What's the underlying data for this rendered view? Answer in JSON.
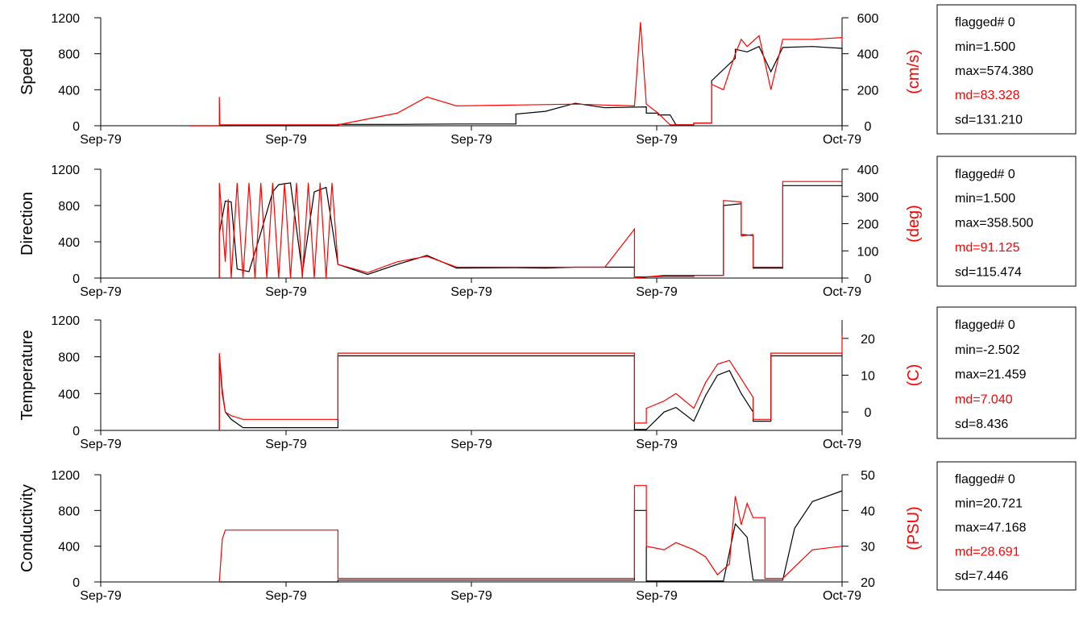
{
  "chart_data": [
    {
      "type": "line",
      "ylabel": "Speed",
      "ylabel_right": "(cm/s)",
      "x_tick_labels": [
        "Sep-79",
        "Sep-79",
        "Sep-79",
        "Sep-79",
        "Oct-79"
      ],
      "ylim": [
        0,
        1200
      ],
      "y_ticks": [
        "0",
        "400",
        "800",
        "1200"
      ],
      "ylim_right": [
        0,
        600
      ],
      "y_ticks_right": [
        "0",
        "200",
        "400",
        "600"
      ],
      "series": [
        {
          "color": "#000000",
          "axis": "left",
          "x": [
            0.15,
            0.2,
            0.4,
            0.4,
            0.5,
            0.6,
            0.7,
            0.7,
            0.75,
            0.8,
            0.85,
            0.85,
            0.92,
            0.92,
            0.94,
            0.94,
            0.96,
            0.97,
            0.98,
            0.98,
            1.0,
            1.0,
            1.03,
            1.03,
            1.07,
            1.07,
            1.09,
            1.11,
            1.13,
            1.15,
            1.2,
            1.25,
            1.25
          ],
          "y": [
            0,
            0,
            0,
            15,
            15,
            20,
            20,
            130,
            160,
            250,
            200,
            200,
            210,
            140,
            140,
            120,
            120,
            10,
            10,
            10,
            10,
            30,
            30,
            500,
            750,
            850,
            820,
            880,
            600,
            870,
            880,
            860,
            0
          ]
        },
        {
          "color": "#ff0000",
          "axis": "right",
          "x": [
            0.15,
            0.2,
            0.2,
            0.201,
            0.21,
            0.4,
            0.4,
            0.5,
            0.55,
            0.6,
            0.7,
            0.8,
            0.9,
            0.91,
            0.92,
            0.92,
            0.94,
            0.94,
            0.96,
            0.97,
            0.98,
            1.0,
            1.0,
            1.03,
            1.03,
            1.05,
            1.07,
            1.08,
            1.09,
            1.11,
            1.13,
            1.15,
            1.2,
            1.25,
            1.25
          ],
          "y": [
            0,
            0,
            160,
            5,
            5,
            5,
            5,
            70,
            160,
            110,
            115,
            120,
            110,
            575,
            120,
            120,
            70,
            70,
            5,
            5,
            5,
            5,
            15,
            15,
            230,
            200,
            400,
            480,
            440,
            500,
            200,
            480,
            480,
            490,
            470
          ]
        }
      ],
      "stats": {
        "flagged": "flagged# 0",
        "min": "min=1.500",
        "max": "max=574.380",
        "md": "md=83.328",
        "sd": "sd=131.210"
      }
    },
    {
      "type": "line",
      "ylabel": "Direction",
      "ylabel_right": "(deg)",
      "x_tick_labels": [
        "Sep-79",
        "Sep-79",
        "Sep-79",
        "Sep-79",
        "Oct-79"
      ],
      "ylim": [
        0,
        1200
      ],
      "y_ticks": [
        "0",
        "400",
        "800",
        "1200"
      ],
      "ylim_right": [
        0,
        400
      ],
      "y_ticks_right": [
        "0",
        "100",
        "200",
        "300",
        "400"
      ],
      "series": [
        {
          "color": "#000000",
          "axis": "left",
          "x": [
            0.2,
            0.2,
            0.21,
            0.22,
            0.23,
            0.25,
            0.27,
            0.29,
            0.3,
            0.32,
            0.34,
            0.36,
            0.38,
            0.4,
            0.45,
            0.5,
            0.55,
            0.6,
            0.7,
            0.75,
            0.8,
            0.85,
            0.9,
            0.9,
            0.95,
            1.0,
            1.0,
            1.05,
            1.05,
            1.08,
            1.08,
            1.1,
            1.1,
            1.15,
            1.15,
            1.25
          ],
          "y": [
            0,
            500,
            850,
            840,
            100,
            70,
            500,
            950,
            1030,
            1050,
            60,
            950,
            1000,
            150,
            40,
            150,
            250,
            110,
            115,
            110,
            120,
            120,
            120,
            10,
            20,
            20,
            30,
            30,
            800,
            820,
            480,
            470,
            110,
            110,
            1020,
            1020
          ]
        },
        {
          "color": "#ff0000",
          "axis": "right",
          "x": [
            0.2,
            0.2,
            0.21,
            0.215,
            0.22,
            0.23,
            0.24,
            0.25,
            0.26,
            0.27,
            0.28,
            0.29,
            0.3,
            0.31,
            0.32,
            0.33,
            0.34,
            0.35,
            0.36,
            0.37,
            0.38,
            0.39,
            0.4,
            0.45,
            0.5,
            0.55,
            0.6,
            0.7,
            0.75,
            0.8,
            0.85,
            0.9,
            0.9,
            0.95,
            1.0,
            1.0,
            1.05,
            1.05,
            1.08,
            1.08,
            1.1,
            1.1,
            1.15,
            1.15,
            1.25
          ],
          "y": [
            0,
            350,
            60,
            290,
            0,
            350,
            0,
            350,
            0,
            350,
            0,
            350,
            0,
            350,
            0,
            350,
            0,
            350,
            0,
            350,
            0,
            350,
            50,
            20,
            60,
            80,
            40,
            40,
            40,
            40,
            40,
            180,
            0,
            10,
            10,
            10,
            10,
            285,
            280,
            155,
            160,
            40,
            40,
            355,
            355
          ]
        }
      ],
      "stats": {
        "flagged": "flagged# 0",
        "min": "min=1.500",
        "max": "max=358.500",
        "md": "md=91.125",
        "sd": "sd=115.474"
      }
    },
    {
      "type": "line",
      "ylabel": "Temperature",
      "ylabel_right": "(C)",
      "x_tick_labels": [
        "Sep-79",
        "Sep-79",
        "Sep-79",
        "Sep-79",
        "Oct-79"
      ],
      "ylim": [
        0,
        1200
      ],
      "y_ticks": [
        "0",
        "400",
        "800",
        "1200"
      ],
      "ylim_right": [
        -5,
        25
      ],
      "y_ticks_right": [
        "0",
        "10",
        "20"
      ],
      "series": [
        {
          "color": "#000000",
          "axis": "left",
          "x": [
            0.2,
            0.2,
            0.205,
            0.21,
            0.22,
            0.24,
            0.4,
            0.4,
            0.9,
            0.9,
            0.92,
            0.92,
            0.95,
            0.97,
            1.0,
            1.02,
            1.04,
            1.06,
            1.08,
            1.1,
            1.1,
            1.13,
            1.13,
            1.25
          ],
          "y": [
            0,
            800,
            400,
            200,
            120,
            30,
            30,
            810,
            810,
            10,
            10,
            10,
            200,
            250,
            100,
            380,
            600,
            650,
            400,
            200,
            100,
            100,
            810,
            810
          ]
        },
        {
          "color": "#ff0000",
          "axis": "right",
          "x": [
            0.2,
            0.2,
            0.205,
            0.21,
            0.22,
            0.24,
            0.4,
            0.4,
            0.9,
            0.9,
            0.92,
            0.92,
            0.95,
            0.97,
            1.0,
            1.02,
            1.04,
            1.06,
            1.08,
            1.1,
            1.1,
            1.13,
            1.13,
            1.25,
            1.25
          ],
          "y": [
            -5,
            16,
            6,
            0,
            -1,
            -2,
            -2,
            16,
            16,
            -3,
            -3,
            1,
            3,
            5,
            1,
            8,
            13,
            14,
            9,
            4,
            -2,
            -2,
            16,
            16,
            21
          ]
        }
      ],
      "stats": {
        "flagged": "flagged# 0",
        "min": "min=-2.502",
        "max": "max=21.459",
        "md": "md=7.040",
        "sd": "sd=8.436"
      }
    },
    {
      "type": "line",
      "ylabel": "Conductivity",
      "ylabel_right": "(PSU)",
      "x_tick_labels": [
        "Sep-79",
        "Sep-79",
        "Sep-79",
        "Sep-79",
        "Oct-79"
      ],
      "ylim": [
        0,
        1200
      ],
      "y_ticks": [
        "0",
        "400",
        "800",
        "1200"
      ],
      "ylim_right": [
        20,
        50
      ],
      "y_ticks_right": [
        "20",
        "30",
        "40",
        "50"
      ],
      "series": [
        {
          "color": "#000000",
          "axis": "left",
          "x": [
            0.2,
            0.4,
            0.4,
            0.9,
            0.9,
            0.92,
            0.92,
            1.0,
            1.05,
            1.07,
            1.09,
            1.1,
            1.1,
            1.15,
            1.17,
            1.2,
            1.25
          ],
          "y": [
            0,
            0,
            20,
            20,
            800,
            800,
            10,
            10,
            10,
            650,
            500,
            20,
            20,
            20,
            600,
            900,
            1020
          ]
        },
        {
          "color": "#ff0000",
          "axis": "right",
          "x": [
            0.2,
            0.205,
            0.21,
            0.22,
            0.4,
            0.4,
            0.9,
            0.9,
            0.92,
            0.92,
            0.95,
            0.97,
            1.0,
            1.02,
            1.04,
            1.06,
            1.07,
            1.08,
            1.09,
            1.1,
            1.12,
            1.12,
            1.15,
            1.15,
            1.2,
            1.25
          ],
          "y": [
            20,
            32,
            34.5,
            34.5,
            34.5,
            21,
            21,
            47,
            47,
            30,
            29,
            31,
            29,
            27,
            22,
            25,
            44,
            36,
            42,
            38,
            38,
            21,
            21,
            21,
            29,
            30
          ]
        }
      ],
      "stats": {
        "flagged": "flagged# 0",
        "min": "min=20.721",
        "max": "max=47.168",
        "md": "md=28.691",
        "sd": "sd=7.446"
      }
    }
  ]
}
